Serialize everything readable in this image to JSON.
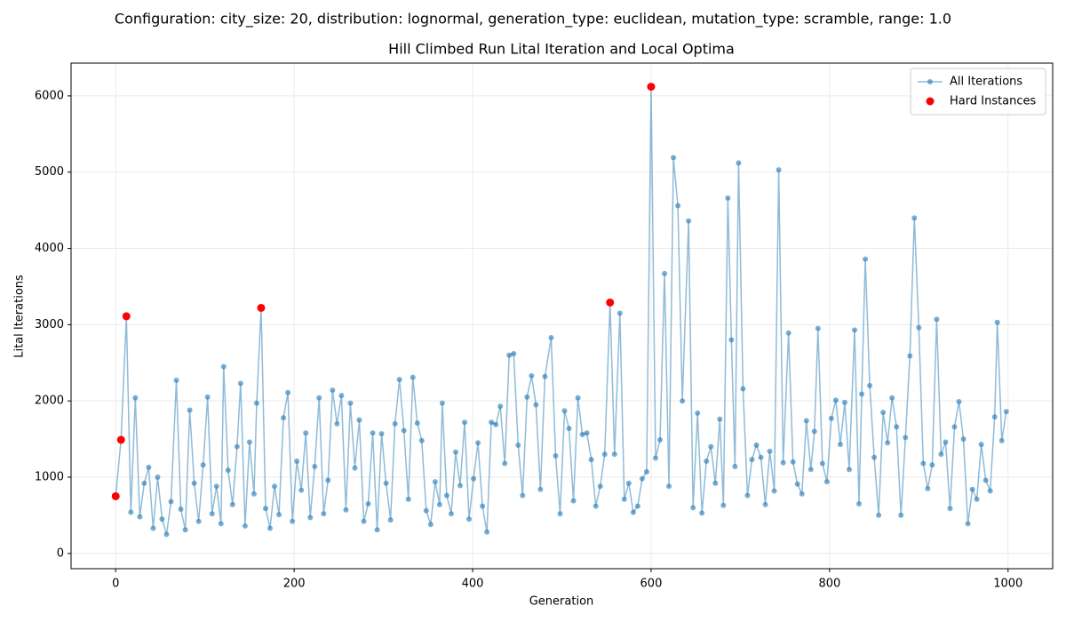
{
  "chart_data": {
    "type": "line",
    "suptitle": "Configuration: city_size: 20, distribution: lognormal, generation_type: euclidean, mutation_type: scramble, range: 1.0",
    "title": "Hill Climbed Run Lital Iteration and Local Optima",
    "xlabel": "Generation",
    "ylabel": "Lital Iterations",
    "xlim": [
      -50,
      1050
    ],
    "ylim": [
      -200,
      6430
    ],
    "xticks": [
      0,
      200,
      400,
      600,
      800,
      1000
    ],
    "yticks": [
      0,
      1000,
      2000,
      3000,
      4000,
      5000,
      6000
    ],
    "grid": true,
    "legend": "upper right",
    "series": [
      {
        "name": "All Iterations",
        "color": "#1f77b4",
        "kind": "line",
        "x": [
          0,
          6,
          12,
          17,
          22,
          27,
          32,
          37,
          42,
          47,
          52,
          57,
          62,
          68,
          73,
          78,
          83,
          88,
          93,
          98,
          103,
          108,
          113,
          118,
          121,
          126,
          131,
          136,
          140,
          145,
          150,
          155,
          158,
          163,
          168,
          173,
          178,
          183,
          188,
          193,
          198,
          203,
          208,
          213,
          218,
          223,
          228,
          233,
          238,
          243,
          248,
          253,
          258,
          263,
          268,
          273,
          278,
          283,
          288,
          293,
          298,
          303,
          308,
          313,
          318,
          323,
          328,
          333,
          338,
          343,
          348,
          353,
          358,
          363,
          366,
          371,
          376,
          381,
          386,
          391,
          396,
          401,
          406,
          411,
          416,
          421,
          426,
          431,
          436,
          441,
          446,
          451,
          456,
          461,
          466,
          471,
          476,
          481,
          488,
          493,
          498,
          503,
          508,
          513,
          518,
          523,
          528,
          533,
          538,
          543,
          548,
          554,
          559,
          565,
          570,
          575,
          580,
          585,
          590,
          595,
          600,
          605,
          610,
          615,
          620,
          625,
          630,
          635,
          642,
          647,
          652,
          657,
          662,
          667,
          672,
          677,
          681,
          686,
          690,
          694,
          698,
          703,
          708,
          713,
          718,
          723,
          728,
          733,
          738,
          743,
          748,
          754,
          759,
          764,
          769,
          774,
          779,
          783,
          787,
          792,
          797,
          802,
          807,
          812,
          817,
          822,
          828,
          833,
          836,
          840,
          845,
          850,
          855,
          860,
          865,
          870,
          875,
          880,
          885,
          890,
          895,
          900,
          905,
          910,
          915,
          920,
          925,
          930,
          935,
          940,
          945,
          950,
          955,
          960,
          965,
          970,
          975,
          980,
          985,
          988,
          993,
          998
        ],
        "values": [
          750,
          1490,
          3110,
          540,
          2040,
          480,
          920,
          1130,
          330,
          1000,
          450,
          250,
          680,
          2270,
          580,
          310,
          1880,
          920,
          420,
          1160,
          2050,
          520,
          880,
          390,
          2450,
          1090,
          640,
          1400,
          2230,
          360,
          1460,
          780,
          1970,
          3220,
          590,
          330,
          880,
          510,
          1780,
          2110,
          420,
          1210,
          830,
          1580,
          470,
          1140,
          2040,
          520,
          960,
          2140,
          1700,
          2070,
          570,
          1970,
          1120,
          1750,
          420,
          650,
          1580,
          310,
          1570,
          920,
          440,
          1700,
          2280,
          1610,
          710,
          2310,
          1710,
          1480,
          560,
          380,
          940,
          640,
          1970,
          760,
          520,
          1330,
          890,
          1720,
          450,
          980,
          1450,
          620,
          280,
          1720,
          1690,
          1930,
          1180,
          2600,
          2620,
          1420,
          760,
          2050,
          2330,
          1950,
          840,
          2320,
          2830,
          1280,
          520,
          1870,
          1640,
          690,
          2040,
          1560,
          1580,
          1230,
          620,
          880,
          1300,
          3290,
          1300,
          3150,
          710,
          920,
          540,
          620,
          980,
          1070,
          6120,
          1250,
          1490,
          3670,
          880,
          5190,
          4560,
          2000,
          4360,
          600,
          1840,
          530,
          1210,
          1400,
          920,
          1760,
          630,
          4660,
          2800,
          1140,
          5120,
          2160,
          760,
          1230,
          1420,
          1260,
          640,
          1340,
          820,
          5030,
          1190,
          2890,
          1200,
          910,
          780,
          1740,
          1100,
          1600,
          2950,
          1180,
          940,
          1770,
          2010,
          1430,
          1980,
          1100,
          2930,
          650,
          2090,
          3860,
          2200,
          1260,
          500,
          1850,
          1450,
          2040,
          1660,
          500,
          1520,
          2590,
          4400,
          2960,
          1180,
          850,
          1160,
          3070,
          1300,
          1460,
          590,
          1660,
          1990,
          1500,
          390,
          840,
          710,
          1430,
          960,
          820,
          1790,
          3030,
          1480,
          1860
        ]
      },
      {
        "name": "Hard Instances",
        "color": "#ff0000",
        "kind": "scatter",
        "x": [
          0,
          6,
          12,
          163,
          554,
          600
        ],
        "values": [
          750,
          1490,
          3110,
          3220,
          3290,
          6120
        ]
      }
    ]
  }
}
